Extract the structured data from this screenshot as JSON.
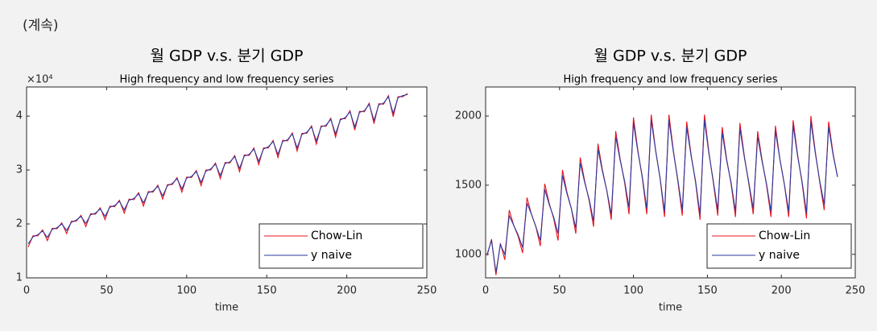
{
  "label": "(계속)",
  "chart_data": [
    {
      "type": "line",
      "title": "월 GDP v.s. 분기 GDP",
      "subtitle": "High frequency and low frequency series",
      "xlabel": "time",
      "y_offset_text": "×10⁴",
      "xlim": [
        0,
        250
      ],
      "xticks": [
        0,
        50,
        100,
        150,
        200,
        250
      ],
      "ylim": [
        10000,
        45400
      ],
      "yticks": [
        {
          "value": 10000,
          "label": "1"
        },
        {
          "value": 20000,
          "label": "2"
        },
        {
          "value": 30000,
          "label": "3"
        },
        {
          "value": 40000,
          "label": "4"
        }
      ],
      "legend": "lower right",
      "x": [
        1,
        4,
        7,
        10,
        13,
        16,
        19,
        22,
        25,
        28,
        31,
        34,
        37,
        40,
        43,
        46,
        49,
        52,
        55,
        58,
        61,
        64,
        67,
        70,
        73,
        76,
        79,
        82,
        85,
        88,
        91,
        94,
        97,
        100,
        103,
        106,
        109,
        112,
        115,
        118,
        121,
        124,
        127,
        130,
        133,
        136,
        139,
        142,
        145,
        148,
        151,
        154,
        157,
        160,
        163,
        166,
        169,
        172,
        175,
        178,
        181,
        184,
        187,
        190,
        193,
        196,
        199,
        202,
        205,
        208,
        211,
        214,
        217,
        220,
        223,
        226,
        229,
        232,
        235,
        238
      ],
      "series": [
        {
          "name": "Chow-Lin",
          "color": "#e5131c",
          "values": [
            15700,
            17800,
            17800,
            18900,
            16900,
            19200,
            19100,
            20200,
            18200,
            20500,
            20500,
            21600,
            19500,
            21900,
            21800,
            23000,
            20800,
            23300,
            23200,
            24400,
            22000,
            24600,
            24500,
            25800,
            23300,
            26000,
            25900,
            27200,
            24600,
            27300,
            27300,
            28600,
            25900,
            28700,
            28600,
            29900,
            27100,
            30000,
            30000,
            31300,
            28400,
            31400,
            31300,
            32700,
            29700,
            32800,
            32700,
            34100,
            31000,
            34100,
            34100,
            35500,
            32300,
            35500,
            35400,
            36900,
            33500,
            36800,
            36800,
            38200,
            34800,
            38200,
            38100,
            39600,
            36100,
            39500,
            39500,
            41000,
            37400,
            40900,
            40800,
            42400,
            38600,
            42300,
            42200,
            43800,
            39900,
            43600,
            43600,
            44200
          ]
        },
        {
          "name": "y naive",
          "color": "#2b3aa0",
          "values": [
            16300,
            17600,
            18000,
            18700,
            17500,
            19000,
            19300,
            20000,
            18800,
            20300,
            20700,
            21400,
            20100,
            21700,
            22000,
            22800,
            21400,
            23100,
            23400,
            24200,
            22600,
            24400,
            24700,
            25600,
            23900,
            25800,
            26100,
            27000,
            25200,
            27100,
            27500,
            28400,
            26500,
            28500,
            28800,
            29700,
            27700,
            29800,
            30200,
            31100,
            29000,
            31200,
            31500,
            32500,
            30300,
            32600,
            32900,
            33900,
            31600,
            33900,
            34300,
            35300,
            32900,
            35300,
            35600,
            36700,
            34100,
            36600,
            37000,
            38000,
            35400,
            38000,
            38300,
            39400,
            36700,
            39300,
            39700,
            40800,
            38000,
            40700,
            41000,
            42200,
            39200,
            42100,
            42400,
            43600,
            40500,
            43400,
            43800,
            44000
          ]
        }
      ]
    },
    {
      "type": "line",
      "title": "월 GDP v.s. 분기 GDP",
      "subtitle": "High frequency and low frequency series",
      "xlabel": "time",
      "xlim": [
        0,
        250
      ],
      "xticks": [
        0,
        50,
        100,
        150,
        200,
        250
      ],
      "ylim": [
        830,
        2210
      ],
      "yticks": [
        1000,
        1500,
        2000
      ],
      "legend": "lower right",
      "x": [
        1,
        4,
        7,
        10,
        13,
        16,
        19,
        22,
        25,
        28,
        31,
        34,
        37,
        40,
        43,
        46,
        49,
        52,
        55,
        58,
        61,
        64,
        67,
        70,
        73,
        76,
        79,
        82,
        85,
        88,
        91,
        94,
        97,
        100,
        103,
        106,
        109,
        112,
        115,
        118,
        121,
        124,
        127,
        130,
        133,
        136,
        139,
        142,
        145,
        148,
        151,
        154,
        157,
        160,
        163,
        166,
        169,
        172,
        175,
        178,
        181,
        184,
        187,
        190,
        193,
        196,
        199,
        202,
        205,
        208,
        211,
        214,
        217,
        220,
        223,
        226,
        229,
        232,
        235,
        238
      ],
      "series": [
        {
          "name": "Chow-Lin",
          "color": "#e5131c",
          "values": [
            990,
            1110,
            850,
            1080,
            960,
            1320,
            1210,
            1130,
            1010,
            1410,
            1290,
            1200,
            1060,
            1510,
            1370,
            1260,
            1100,
            1610,
            1450,
            1330,
            1150,
            1700,
            1530,
            1390,
            1200,
            1800,
            1610,
            1460,
            1250,
            1890,
            1690,
            1520,
            1290,
            1990,
            1750,
            1550,
            1290,
            2010,
            1750,
            1550,
            1270,
            2010,
            1750,
            1530,
            1280,
            1960,
            1720,
            1520,
            1250,
            2010,
            1740,
            1520,
            1280,
            1920,
            1690,
            1510,
            1270,
            1950,
            1710,
            1510,
            1290,
            1890,
            1680,
            1500,
            1270,
            1930,
            1690,
            1510,
            1270,
            1970,
            1720,
            1520,
            1260,
            2000,
            1740,
            1520,
            1320,
            1960,
            1730,
            1560
          ]
        },
        {
          "name": "y naive",
          "color": "#2b3aa0",
          "values": [
            1000,
            1100,
            870,
            1070,
            1000,
            1280,
            1210,
            1140,
            1050,
            1370,
            1290,
            1200,
            1100,
            1470,
            1360,
            1270,
            1150,
            1570,
            1440,
            1330,
            1190,
            1660,
            1520,
            1400,
            1240,
            1760,
            1600,
            1460,
            1290,
            1850,
            1680,
            1530,
            1340,
            1950,
            1740,
            1560,
            1330,
            1970,
            1750,
            1550,
            1310,
            1970,
            1740,
            1540,
            1320,
            1920,
            1710,
            1530,
            1290,
            1970,
            1730,
            1530,
            1320,
            1880,
            1680,
            1520,
            1310,
            1910,
            1700,
            1520,
            1330,
            1850,
            1670,
            1510,
            1310,
            1890,
            1690,
            1510,
            1310,
            1930,
            1710,
            1530,
            1300,
            1960,
            1730,
            1530,
            1360,
            1920,
            1720,
            1560
          ]
        }
      ]
    }
  ]
}
